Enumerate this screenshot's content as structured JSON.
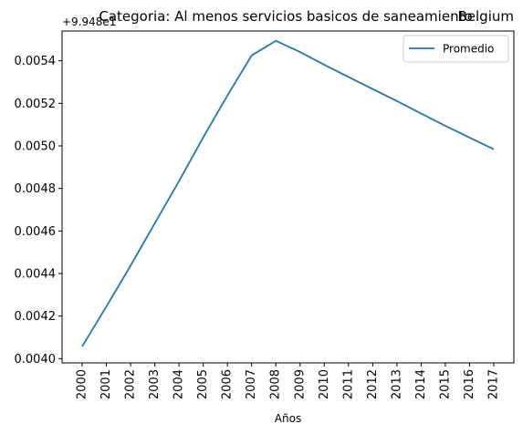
{
  "chart_data": {
    "type": "line",
    "title": "Categoria: Al menos servicios basicos de saneamiento",
    "title_right": "Belgium",
    "offset_text": "+9.948e1",
    "xlabel": "Años",
    "ylabel": "",
    "x": [
      "2000",
      "2001",
      "2002",
      "2003",
      "2004",
      "2005",
      "2006",
      "2007",
      "2008",
      "2009",
      "2010",
      "2011",
      "2012",
      "2013",
      "2014",
      "2015",
      "2016",
      "2017"
    ],
    "y_ticks": [
      "0.0040",
      "0.0042",
      "0.0044",
      "0.0046",
      "0.0048",
      "0.0050",
      "0.0052",
      "0.0054"
    ],
    "ylim": [
      0.00398,
      0.00554
    ],
    "series": [
      {
        "name": "Promedio",
        "color": "#1f77b4",
        "values": [
          0.004057,
          0.004245,
          0.004437,
          0.004636,
          0.004834,
          0.00504,
          0.005237,
          0.005425,
          0.005494,
          0.005441,
          0.005381,
          0.005324,
          0.005267,
          0.005211,
          0.005152,
          0.005094,
          0.005039,
          0.004984
        ]
      }
    ],
    "grid": false,
    "legend_position": "upper right"
  }
}
